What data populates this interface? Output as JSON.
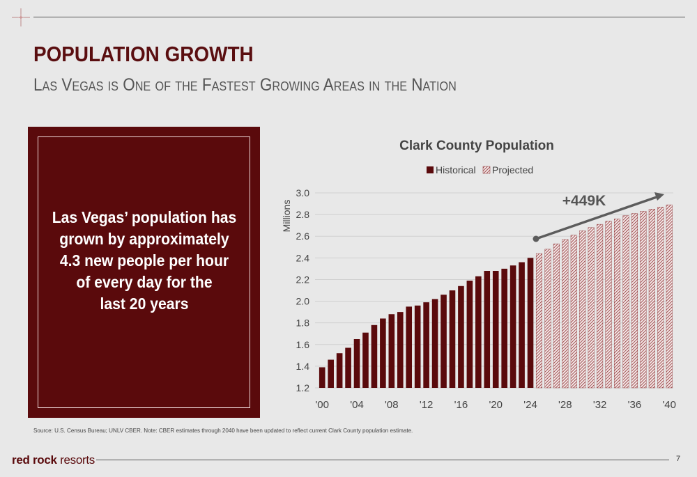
{
  "slide": {
    "title": "POPULATION GROWTH",
    "subtitle": "Las Vegas is One of the Fastest Growing Areas in the Nation",
    "callout": "Las Vegas’ population has\ngrown by approximately\n4.3 new people per hour\nof every day for the\nlast 20 years",
    "source": "Source: U.S. Census Bureau; UNLV CBER. Note: CBER estimates through 2040 have been updated to reflect current Clark County population estimate.",
    "brand_bold": "red rock",
    "brand_light": " resorts",
    "page_number": "7"
  },
  "colors": {
    "historical": "#5a0a0c",
    "projected_stripe": "#8a2a2c",
    "annotation": "#5c5c5c",
    "background": "#e8e8e8"
  },
  "chart_data": {
    "type": "bar",
    "title": "Clark County Population",
    "ylabel": "Millions",
    "ylim": [
      1.2,
      3.0
    ],
    "yticks": [
      "1.2",
      "1.4",
      "1.6",
      "1.8",
      "2.0",
      "2.2",
      "2.4",
      "2.6",
      "2.8",
      "3.0"
    ],
    "xticks": [
      "'00",
      "'04",
      "'08",
      "'12",
      "'16",
      "'20",
      "'24",
      "'28",
      "'32",
      "'36",
      "'40"
    ],
    "legend": [
      "Historical",
      "Projected"
    ],
    "legend_position": "top",
    "grid": true,
    "annotation": "+449K",
    "years": [
      2000,
      2001,
      2002,
      2003,
      2004,
      2005,
      2006,
      2007,
      2008,
      2009,
      2010,
      2011,
      2012,
      2013,
      2014,
      2015,
      2016,
      2017,
      2018,
      2019,
      2020,
      2021,
      2022,
      2023,
      2024,
      2025,
      2026,
      2027,
      2028,
      2029,
      2030,
      2031,
      2032,
      2033,
      2034,
      2035,
      2036,
      2037,
      2038,
      2039,
      2040
    ],
    "series": [
      {
        "name": "Historical",
        "values": [
          1.39,
          1.46,
          1.52,
          1.57,
          1.65,
          1.71,
          1.78,
          1.84,
          1.88,
          1.9,
          1.95,
          1.96,
          1.99,
          2.02,
          2.06,
          2.1,
          2.14,
          2.19,
          2.23,
          2.28,
          2.28,
          2.3,
          2.33,
          2.36,
          2.4
        ]
      },
      {
        "name": "Projected",
        "values": [
          2.44,
          2.48,
          2.53,
          2.57,
          2.61,
          2.65,
          2.68,
          2.71,
          2.74,
          2.76,
          2.79,
          2.81,
          2.83,
          2.85,
          2.87,
          2.89
        ]
      }
    ]
  }
}
